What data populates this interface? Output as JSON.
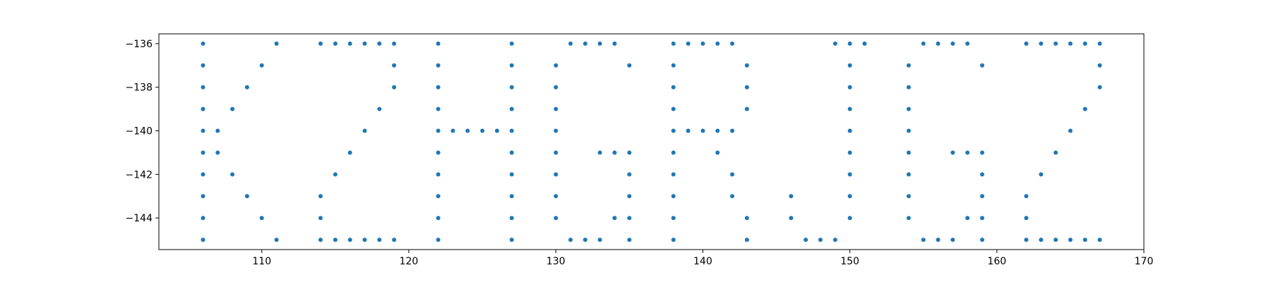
{
  "chart_data": {
    "type": "scatter",
    "title": "",
    "xlabel": "",
    "ylabel": "",
    "xlim": [
      103,
      170
    ],
    "ylim": [
      -145.45,
      -135.55
    ],
    "xticks": [
      110,
      120,
      130,
      140,
      150,
      160,
      170
    ],
    "yticks": [
      -136,
      -138,
      -140,
      -142,
      -144
    ],
    "xtick_labels": [
      "110",
      "120",
      "130",
      "140",
      "150",
      "160",
      "170"
    ],
    "ytick_labels": [
      "−136",
      "−138",
      "−140",
      "−142",
      "−144"
    ],
    "grid": false,
    "marker_color": "#1f77b4",
    "points": [
      [
        106,
        -136
      ],
      [
        106,
        -137
      ],
      [
        106,
        -138
      ],
      [
        106,
        -139
      ],
      [
        106,
        -140
      ],
      [
        106,
        -141
      ],
      [
        106,
        -142
      ],
      [
        106,
        -143
      ],
      [
        106,
        -144
      ],
      [
        106,
        -145
      ],
      [
        107,
        -140
      ],
      [
        107,
        -141
      ],
      [
        108,
        -139
      ],
      [
        108,
        -142
      ],
      [
        109,
        -138
      ],
      [
        109,
        -143
      ],
      [
        110,
        -137
      ],
      [
        110,
        -144
      ],
      [
        111,
        -136
      ],
      [
        111,
        -145
      ],
      [
        114,
        -136
      ],
      [
        115,
        -136
      ],
      [
        116,
        -136
      ],
      [
        117,
        -136
      ],
      [
        118,
        -136
      ],
      [
        119,
        -136
      ],
      [
        119,
        -137
      ],
      [
        119,
        -138
      ],
      [
        118,
        -139
      ],
      [
        117,
        -140
      ],
      [
        116,
        -141
      ],
      [
        115,
        -142
      ],
      [
        114,
        -143
      ],
      [
        114,
        -144
      ],
      [
        114,
        -145
      ],
      [
        115,
        -145
      ],
      [
        116,
        -145
      ],
      [
        117,
        -145
      ],
      [
        118,
        -145
      ],
      [
        119,
        -145
      ],
      [
        122,
        -136
      ],
      [
        122,
        -137
      ],
      [
        122,
        -138
      ],
      [
        122,
        -139
      ],
      [
        122,
        -140
      ],
      [
        122,
        -141
      ],
      [
        122,
        -142
      ],
      [
        122,
        -143
      ],
      [
        122,
        -144
      ],
      [
        122,
        -145
      ],
      [
        123,
        -140
      ],
      [
        124,
        -140
      ],
      [
        125,
        -140
      ],
      [
        126,
        -140
      ],
      [
        127,
        -136
      ],
      [
        127,
        -137
      ],
      [
        127,
        -138
      ],
      [
        127,
        -139
      ],
      [
        127,
        -140
      ],
      [
        127,
        -141
      ],
      [
        127,
        -142
      ],
      [
        127,
        -143
      ],
      [
        127,
        -144
      ],
      [
        127,
        -145
      ],
      [
        131,
        -136
      ],
      [
        132,
        -136
      ],
      [
        133,
        -136
      ],
      [
        134,
        -136
      ],
      [
        135,
        -137
      ],
      [
        130,
        -137
      ],
      [
        130,
        -138
      ],
      [
        130,
        -139
      ],
      [
        130,
        -140
      ],
      [
        130,
        -141
      ],
      [
        130,
        -142
      ],
      [
        130,
        -143
      ],
      [
        130,
        -144
      ],
      [
        131,
        -145
      ],
      [
        132,
        -145
      ],
      [
        133,
        -145
      ],
      [
        134,
        -144
      ],
      [
        135,
        -145
      ],
      [
        135,
        -144
      ],
      [
        135,
        -143
      ],
      [
        135,
        -142
      ],
      [
        135,
        -141
      ],
      [
        134,
        -141
      ],
      [
        133,
        -141
      ],
      [
        138,
        -136
      ],
      [
        138,
        -137
      ],
      [
        138,
        -138
      ],
      [
        138,
        -139
      ],
      [
        138,
        -140
      ],
      [
        138,
        -141
      ],
      [
        138,
        -142
      ],
      [
        138,
        -143
      ],
      [
        138,
        -144
      ],
      [
        138,
        -145
      ],
      [
        139,
        -136
      ],
      [
        140,
        -136
      ],
      [
        141,
        -136
      ],
      [
        142,
        -136
      ],
      [
        143,
        -137
      ],
      [
        143,
        -138
      ],
      [
        143,
        -139
      ],
      [
        139,
        -140
      ],
      [
        140,
        -140
      ],
      [
        141,
        -140
      ],
      [
        142,
        -140
      ],
      [
        141,
        -141
      ],
      [
        142,
        -142
      ],
      [
        142,
        -143
      ],
      [
        143,
        -144
      ],
      [
        143,
        -145
      ],
      [
        149,
        -136
      ],
      [
        150,
        -136
      ],
      [
        151,
        -136
      ],
      [
        150,
        -137
      ],
      [
        150,
        -138
      ],
      [
        150,
        -139
      ],
      [
        150,
        -140
      ],
      [
        150,
        -141
      ],
      [
        150,
        -142
      ],
      [
        150,
        -143
      ],
      [
        150,
        -144
      ],
      [
        146,
        -143
      ],
      [
        146,
        -144
      ],
      [
        147,
        -145
      ],
      [
        148,
        -145
      ],
      [
        149,
        -145
      ],
      [
        155,
        -136
      ],
      [
        156,
        -136
      ],
      [
        157,
        -136
      ],
      [
        158,
        -136
      ],
      [
        159,
        -137
      ],
      [
        154,
        -137
      ],
      [
        154,
        -138
      ],
      [
        154,
        -139
      ],
      [
        154,
        -140
      ],
      [
        154,
        -141
      ],
      [
        154,
        -142
      ],
      [
        154,
        -143
      ],
      [
        154,
        -144
      ],
      [
        155,
        -145
      ],
      [
        156,
        -145
      ],
      [
        157,
        -145
      ],
      [
        158,
        -144
      ],
      [
        159,
        -145
      ],
      [
        159,
        -144
      ],
      [
        159,
        -143
      ],
      [
        159,
        -142
      ],
      [
        159,
        -141
      ],
      [
        158,
        -141
      ],
      [
        157,
        -141
      ],
      [
        162,
        -136
      ],
      [
        163,
        -136
      ],
      [
        164,
        -136
      ],
      [
        165,
        -136
      ],
      [
        166,
        -136
      ],
      [
        167,
        -136
      ],
      [
        167,
        -137
      ],
      [
        167,
        -138
      ],
      [
        166,
        -139
      ],
      [
        165,
        -140
      ],
      [
        164,
        -141
      ],
      [
        163,
        -142
      ],
      [
        162,
        -143
      ],
      [
        162,
        -144
      ],
      [
        162,
        -145
      ],
      [
        163,
        -145
      ],
      [
        164,
        -145
      ],
      [
        165,
        -145
      ],
      [
        166,
        -145
      ],
      [
        167,
        -145
      ]
    ]
  }
}
